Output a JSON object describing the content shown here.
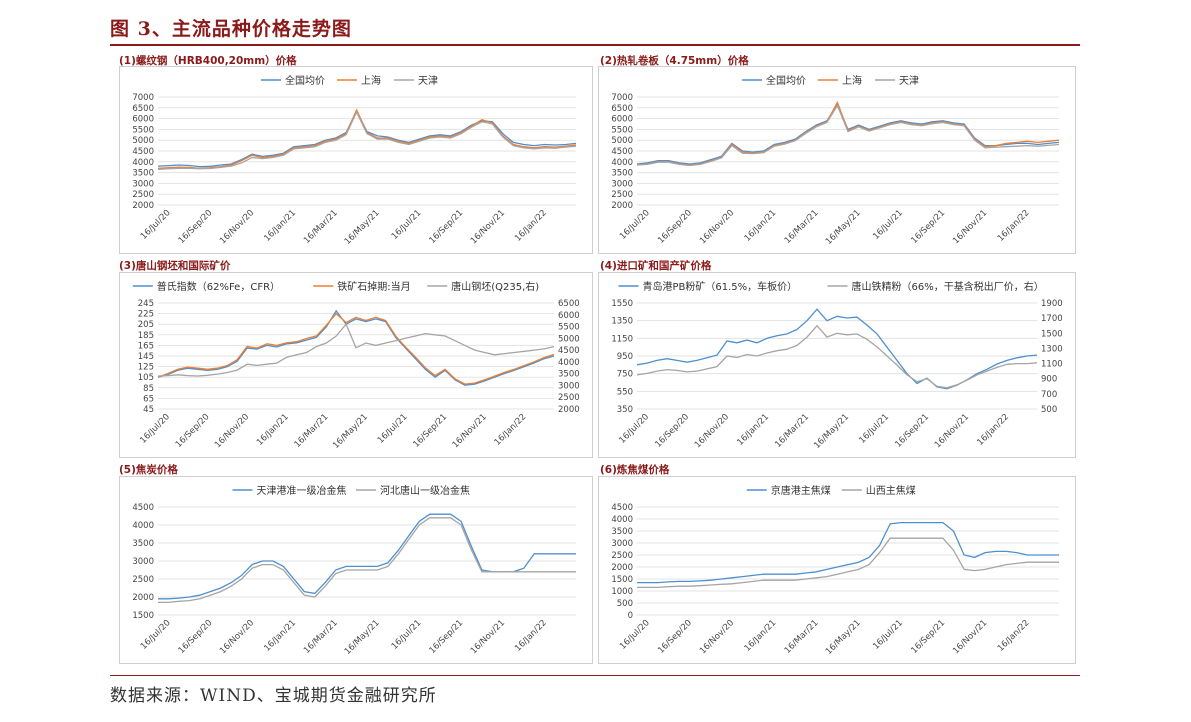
{
  "header": {
    "title": "图 3、主流品种价格走势图"
  },
  "footer": {
    "source": "数据来源：WIND、宝城期货金融研究所"
  },
  "colors": {
    "blue": "#4e8fd0",
    "orange": "#ed7d31",
    "gray": "#a5a5a5",
    "accent": "#8b1a1a"
  },
  "chart_data": [
    {
      "id": "rebar",
      "panel_title": "(1)螺纹钢（HRB400,20mm）价格",
      "type": "line",
      "x_ticks": [
        "16/Jul/20",
        "16/Sep/20",
        "16/Nov/20",
        "16/Jan/21",
        "16/Mar/21",
        "16/May/21",
        "16/Jul/21",
        "16/Sep/21",
        "16/Nov/21",
        "16/Jan/22"
      ],
      "ylim": [
        2000,
        7000
      ],
      "y_ticks": [
        2000,
        2500,
        3000,
        3500,
        4000,
        4500,
        5000,
        5500,
        6000,
        6500,
        7000
      ],
      "series": [
        {
          "name": "全国均价",
          "color": "blue",
          "values": [
            3800,
            3820,
            3850,
            3830,
            3780,
            3790,
            3850,
            3900,
            4100,
            4350,
            4250,
            4300,
            4400,
            4700,
            4750,
            4800,
            5000,
            5100,
            5350,
            6350,
            5400,
            5200,
            5150,
            5000,
            4900,
            5050,
            5200,
            5250,
            5200,
            5400,
            5700,
            5900,
            5850,
            5300,
            4900,
            4800,
            4750,
            4800,
            4780,
            4800,
            4850
          ]
        },
        {
          "name": "上海",
          "color": "orange",
          "values": [
            3700,
            3720,
            3750,
            3740,
            3700,
            3720,
            3780,
            3850,
            4050,
            4300,
            4200,
            4250,
            4350,
            4650,
            4700,
            4750,
            4950,
            5050,
            5300,
            6400,
            5350,
            5100,
            5100,
            4950,
            4850,
            5000,
            5150,
            5200,
            5150,
            5350,
            5650,
            5950,
            5800,
            5200,
            4800,
            4700,
            4650,
            4700,
            4680,
            4720,
            4780
          ]
        },
        {
          "name": "天津",
          "color": "gray",
          "values": [
            3650,
            3680,
            3700,
            3700,
            3680,
            3690,
            3740,
            3800,
            3950,
            4200,
            4150,
            4200,
            4300,
            4600,
            4650,
            4700,
            4900,
            5000,
            5250,
            6300,
            5300,
            5050,
            5050,
            4900,
            4800,
            4950,
            5100,
            5150,
            5100,
            5300,
            5600,
            5850,
            5750,
            5150,
            4750,
            4650,
            4600,
            4650,
            4630,
            4680,
            4720
          ]
        }
      ]
    },
    {
      "id": "hrc",
      "panel_title": "(2)热轧卷板（4.75mm）价格",
      "type": "line",
      "x_ticks": [
        "16/Jul/20",
        "16/Sep/20",
        "16/Nov/20",
        "16/Jan/21",
        "16/Mar/21",
        "16/May/21",
        "16/Jul/21",
        "16/Sep/21",
        "16/Nov/21",
        "16/Jan/22"
      ],
      "ylim": [
        2000,
        7000
      ],
      "y_ticks": [
        2000,
        2500,
        3000,
        3500,
        4000,
        4500,
        5000,
        5500,
        6000,
        6500,
        7000
      ],
      "series": [
        {
          "name": "全国均价",
          "color": "blue",
          "values": [
            3900,
            3950,
            4050,
            4050,
            3950,
            3900,
            3950,
            4100,
            4250,
            4850,
            4500,
            4450,
            4500,
            4800,
            4900,
            5050,
            5400,
            5700,
            5900,
            6650,
            5500,
            5700,
            5500,
            5650,
            5800,
            5900,
            5800,
            5750,
            5850,
            5900,
            5800,
            5750,
            5100,
            4750,
            4750,
            4800,
            4850,
            4850,
            4800,
            4850,
            4900
          ]
        },
        {
          "name": "上海",
          "color": "orange",
          "values": [
            3850,
            3900,
            4000,
            4000,
            3900,
            3850,
            3900,
            4050,
            4200,
            4800,
            4450,
            4400,
            4450,
            4750,
            4850,
            5000,
            5350,
            5650,
            5850,
            6750,
            5450,
            5650,
            5450,
            5600,
            5750,
            5850,
            5750,
            5700,
            5800,
            5850,
            5750,
            5700,
            5050,
            4700,
            4750,
            4850,
            4900,
            4950,
            4900,
            4950,
            5000
          ]
        },
        {
          "name": "天津",
          "color": "gray",
          "values": [
            3850,
            3880,
            3980,
            3980,
            3880,
            3830,
            3880,
            4020,
            4180,
            4750,
            4400,
            4380,
            4420,
            4720,
            4820,
            4980,
            5320,
            5620,
            5820,
            6600,
            5400,
            5620,
            5420,
            5570,
            5720,
            5820,
            5720,
            5670,
            5770,
            5820,
            5720,
            5670,
            5000,
            4650,
            4680,
            4700,
            4720,
            4750,
            4720,
            4760,
            4800
          ]
        }
      ]
    },
    {
      "id": "billet_ore",
      "panel_title": "(3)唐山钢坯和国际矿价",
      "type": "line",
      "x_ticks": [
        "16/Jul/20",
        "16/Sep/20",
        "16/Nov/20",
        "16/Jan/21",
        "16/Mar/21",
        "16/May/21",
        "16/Jul/21",
        "16/Sep/21",
        "16/Nov/21",
        "16/Jan/22"
      ],
      "ylim": [
        45,
        245
      ],
      "y_ticks": [
        45,
        65,
        85,
        105,
        125,
        145,
        165,
        185,
        205,
        225,
        245
      ],
      "ylim_right": [
        2000,
        6500
      ],
      "y_ticks_right": [
        2000,
        2500,
        3000,
        3500,
        4000,
        4500,
        5000,
        5500,
        6000,
        6500
      ],
      "series": [
        {
          "name": "普氏指数（62%Fe，CFR）",
          "color": "blue",
          "axis": "left",
          "values": [
            105,
            110,
            118,
            122,
            120,
            118,
            120,
            125,
            135,
            160,
            158,
            165,
            162,
            168,
            170,
            175,
            180,
            200,
            230,
            205,
            215,
            210,
            215,
            210,
            180,
            160,
            140,
            120,
            105,
            118,
            100,
            90,
            92,
            98,
            105,
            112,
            118,
            125,
            132,
            140,
            145
          ]
        },
        {
          "name": "铁矿石掉期:当月",
          "color": "orange",
          "axis": "left",
          "values": [
            105,
            112,
            120,
            124,
            122,
            120,
            122,
            127,
            138,
            163,
            160,
            168,
            165,
            170,
            172,
            178,
            183,
            203,
            225,
            208,
            218,
            212,
            218,
            212,
            183,
            162,
            143,
            123,
            108,
            120,
            102,
            92,
            94,
            100,
            107,
            114,
            120,
            127,
            134,
            142,
            148
          ]
        },
        {
          "name": "唐山钢坯(Q235,右)",
          "color": "gray",
          "axis": "right",
          "values": [
            3400,
            3420,
            3450,
            3420,
            3400,
            3430,
            3480,
            3550,
            3650,
            3900,
            3850,
            3900,
            3950,
            4200,
            4300,
            4400,
            4650,
            4800,
            5100,
            5600,
            4600,
            4800,
            4700,
            4800,
            4900,
            5000,
            5100,
            5200,
            5150,
            5100,
            4900,
            4700,
            4500,
            4400,
            4300,
            4350,
            4400,
            4450,
            4500,
            4550,
            4650
          ]
        }
      ]
    },
    {
      "id": "ore_import_domestic",
      "panel_title": "(4)进口矿和国产矿价格",
      "type": "line",
      "x_ticks": [
        "16/Jul/20",
        "16/Sep/20",
        "16/Nov/20",
        "16/Jan/21",
        "16/Mar/21",
        "16/May/21",
        "16/Jul/21",
        "16/Sep/21",
        "16/Nov/21",
        "16/Jan/22"
      ],
      "ylim": [
        350,
        1550
      ],
      "y_ticks": [
        350,
        550,
        750,
        950,
        1150,
        1350,
        1550
      ],
      "ylim_right": [
        500,
        1900
      ],
      "y_ticks_right": [
        500,
        700,
        900,
        1100,
        1300,
        1500,
        1700,
        1900
      ],
      "series": [
        {
          "name": "青岛港PB粉矿（61.5%，车板价）",
          "color": "blue",
          "axis": "left",
          "values": [
            850,
            870,
            900,
            920,
            900,
            880,
            900,
            930,
            960,
            1120,
            1100,
            1130,
            1100,
            1150,
            1180,
            1200,
            1250,
            1350,
            1480,
            1350,
            1400,
            1380,
            1390,
            1300,
            1200,
            1050,
            900,
            750,
            640,
            700,
            600,
            580,
            620,
            680,
            750,
            800,
            860,
            900,
            930,
            950,
            960
          ]
        },
        {
          "name": "唐山铁精粉（66%，干基含税出厂价，右）",
          "color": "gray",
          "axis": "right",
          "values": [
            950,
            970,
            1000,
            1020,
            1010,
            990,
            1000,
            1030,
            1060,
            1200,
            1180,
            1220,
            1200,
            1240,
            1270,
            1290,
            1340,
            1450,
            1600,
            1450,
            1500,
            1480,
            1490,
            1420,
            1320,
            1200,
            1080,
            950,
            860,
            900,
            800,
            780,
            820,
            880,
            950,
            1000,
            1050,
            1090,
            1100,
            1100,
            1110
          ]
        }
      ]
    },
    {
      "id": "coke",
      "panel_title": "(5)焦炭价格",
      "type": "line",
      "x_ticks": [
        "16/Jul/20",
        "16/Sep/20",
        "16/Nov/20",
        "16/Jan/21",
        "16/Mar/21",
        "16/May/21",
        "16/Jul/21",
        "16/Sep/21",
        "16/Nov/21",
        "16/Jan/22"
      ],
      "ylim": [
        1500,
        4500
      ],
      "y_ticks": [
        1500,
        2000,
        2500,
        3000,
        3500,
        4000,
        4500
      ],
      "series": [
        {
          "name": "天津港准一级冶金焦",
          "color": "blue",
          "values": [
            1950,
            1950,
            1970,
            2000,
            2050,
            2150,
            2250,
            2400,
            2600,
            2900,
            3000,
            3000,
            2850,
            2500,
            2150,
            2100,
            2400,
            2750,
            2850,
            2850,
            2850,
            2850,
            2950,
            3300,
            3700,
            4100,
            4300,
            4300,
            4300,
            4100,
            3400,
            2750,
            2700,
            2700,
            2700,
            2800,
            3200,
            3200,
            3200,
            3200,
            3200
          ]
        },
        {
          "name": "河北唐山一级冶金焦",
          "color": "gray",
          "values": [
            1850,
            1850,
            1880,
            1900,
            1950,
            2050,
            2150,
            2300,
            2500,
            2800,
            2900,
            2900,
            2750,
            2400,
            2050,
            2000,
            2300,
            2650,
            2750,
            2750,
            2750,
            2750,
            2850,
            3200,
            3600,
            4000,
            4200,
            4200,
            4200,
            4000,
            3300,
            2700,
            2700,
            2700,
            2700,
            2700,
            2700,
            2700,
            2700,
            2700,
            2700
          ]
        }
      ]
    },
    {
      "id": "coking_coal",
      "panel_title": "(6)炼焦煤价格",
      "type": "line",
      "x_ticks": [
        "16/Jul/20",
        "16/Sep/20",
        "16/Nov/20",
        "16/Jan/21",
        "16/Mar/21",
        "16/May/21",
        "16/Jul/21",
        "16/Sep/21",
        "16/Nov/21",
        "16/Jan/22"
      ],
      "ylim": [
        0,
        4500
      ],
      "y_ticks": [
        0,
        500,
        1000,
        1500,
        2000,
        2500,
        3000,
        3500,
        4000,
        4500
      ],
      "series": [
        {
          "name": "京唐港主焦煤",
          "color": "blue",
          "values": [
            1350,
            1350,
            1350,
            1380,
            1400,
            1400,
            1420,
            1450,
            1500,
            1550,
            1600,
            1650,
            1700,
            1700,
            1700,
            1700,
            1750,
            1800,
            1900,
            2000,
            2100,
            2200,
            2400,
            2900,
            3800,
            3850,
            3850,
            3850,
            3850,
            3850,
            3500,
            2500,
            2400,
            2600,
            2650,
            2650,
            2600,
            2500,
            2500,
            2500,
            2500
          ]
        },
        {
          "name": "山西主焦煤",
          "color": "gray",
          "values": [
            1150,
            1150,
            1150,
            1180,
            1200,
            1200,
            1220,
            1250,
            1280,
            1300,
            1350,
            1400,
            1450,
            1450,
            1450,
            1450,
            1500,
            1550,
            1600,
            1700,
            1800,
            1900,
            2100,
            2600,
            3200,
            3200,
            3200,
            3200,
            3200,
            3200,
            2700,
            1900,
            1850,
            1900,
            2000,
            2100,
            2150,
            2200,
            2200,
            2200,
            2200
          ]
        }
      ]
    }
  ]
}
